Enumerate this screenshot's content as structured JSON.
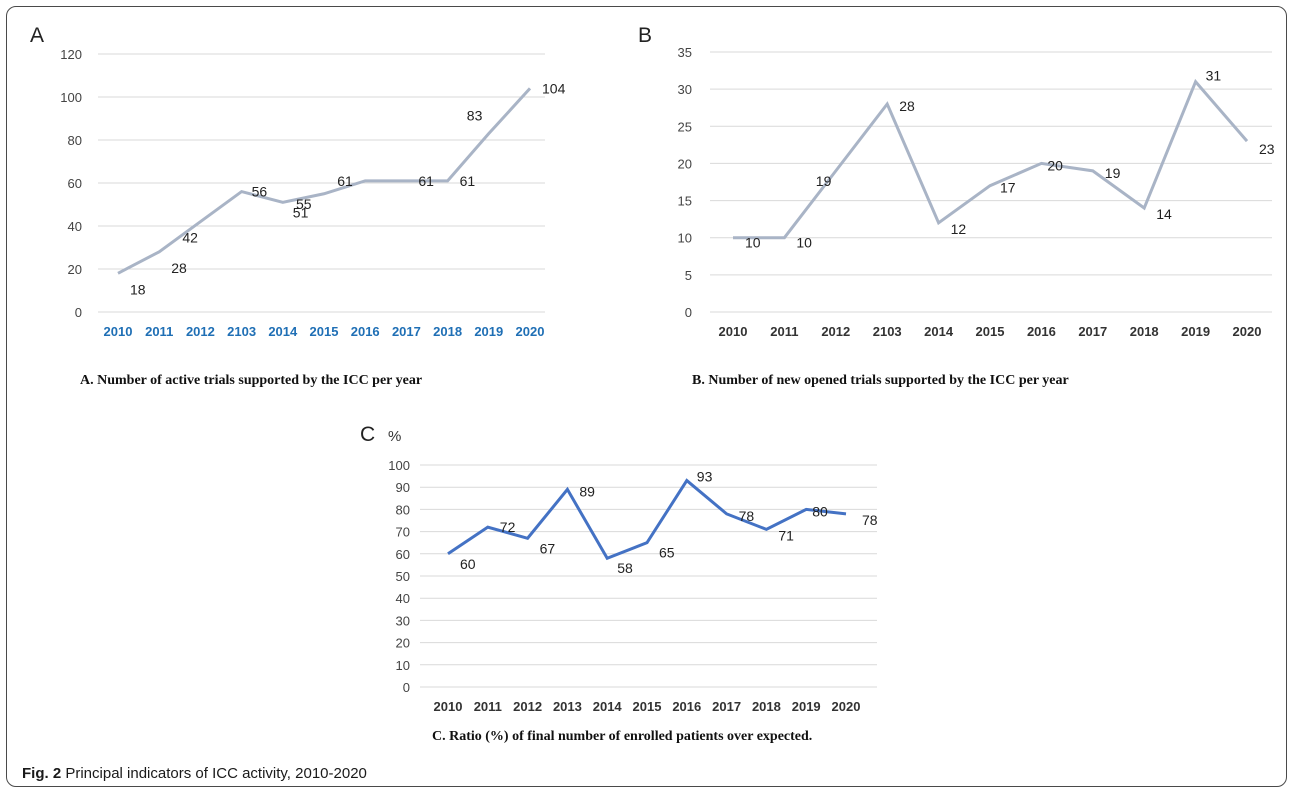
{
  "figure": {
    "caption_label": "Fig. 2",
    "caption_text": "Principal indicators of ICC activity, 2010-2020"
  },
  "chart_data": [
    {
      "type": "line",
      "panel_letter": "A",
      "title": "A. Number of active trials supported by the ICC per year",
      "categories": [
        "2010",
        "2011",
        "2012",
        "2103",
        "2014",
        "2015",
        "2016",
        "2017",
        "2018",
        "2019",
        "2020"
      ],
      "series": [
        {
          "values": [
            18,
            28,
            42,
            56,
            51,
            55,
            61,
            61,
            61,
            83,
            104
          ]
        }
      ],
      "ylim": [
        0,
        120
      ],
      "yticks": [
        0,
        20,
        40,
        60,
        80,
        100,
        120
      ],
      "grid": true,
      "line_color": "#a9b4c6",
      "tick_label_color": "#1f6fb5",
      "data_labels": true
    },
    {
      "type": "line",
      "panel_letter": "B",
      "title": "B. Number of new opened trials supported by the ICC per year",
      "categories": [
        "2010",
        "2011",
        "2012",
        "2103",
        "2014",
        "2015",
        "2016",
        "2017",
        "2018",
        "2019",
        "2020"
      ],
      "series": [
        {
          "values": [
            10,
            10,
            19,
            28,
            12,
            17,
            20,
            19,
            14,
            31,
            23
          ]
        }
      ],
      "ylim": [
        0,
        35
      ],
      "yticks": [
        0,
        5,
        10,
        15,
        20,
        25,
        30,
        35
      ],
      "grid": true,
      "line_color": "#a9b4c6",
      "tick_label_color": "#333333",
      "data_labels": true
    },
    {
      "type": "line",
      "panel_letter": "C",
      "unit": "%",
      "title": "C. Ratio (%) of final number of enrolled patients over expected.",
      "categories": [
        "2010",
        "2011",
        "2012",
        "2013",
        "2014",
        "2015",
        "2016",
        "2017",
        "2018",
        "2019",
        "2020"
      ],
      "series": [
        {
          "values": [
            60,
            72,
            67,
            89,
            58,
            65,
            93,
            78,
            71,
            80,
            78
          ]
        }
      ],
      "ylim": [
        0,
        100
      ],
      "yticks": [
        0,
        10,
        20,
        30,
        40,
        50,
        60,
        70,
        80,
        90,
        100
      ],
      "grid": true,
      "line_color": "#4472c4",
      "tick_label_color": "#333333",
      "data_labels": true
    }
  ]
}
